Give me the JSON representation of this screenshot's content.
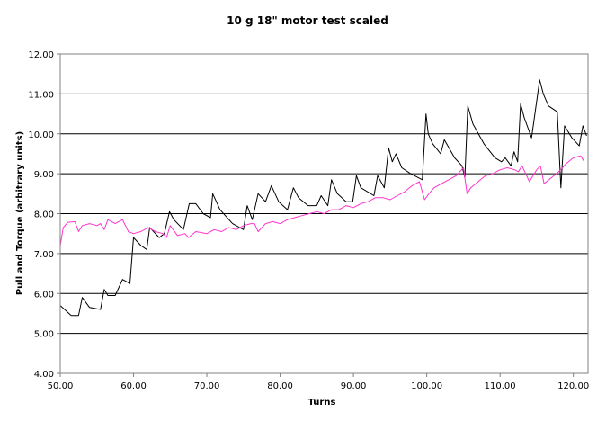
{
  "chart_data": {
    "type": "line",
    "title": "10 g 18\" motor test scaled",
    "xlabel": "Turns",
    "ylabel": "Pull and Torque (arbitrary units)",
    "xlim": [
      50,
      122
    ],
    "ylim": [
      4,
      12
    ],
    "x_ticks": [
      "50.00",
      "60.00",
      "70.00",
      "80.00",
      "90.00",
      "100.00",
      "110.00",
      "120.00"
    ],
    "y_ticks": [
      "4.00",
      "5.00",
      "6.00",
      "7.00",
      "8.00",
      "9.00",
      "10.00",
      "11.00",
      "12.00"
    ],
    "grid": "horizontal",
    "legend": "none",
    "series": [
      {
        "color": "#000000",
        "x": [
          50,
          51.5,
          52.5,
          53,
          54,
          55.5,
          56,
          56.5,
          57.5,
          58.5,
          59.5,
          60,
          61,
          61.8,
          62.2,
          63.5,
          64.2,
          64.9,
          65.5,
          66.8,
          67.6,
          68.5,
          69.5,
          70.5,
          70.8,
          71.8,
          73.5,
          75,
          75.5,
          76.2,
          77,
          78,
          78.8,
          79.8,
          81,
          81.8,
          82.5,
          83.8,
          85,
          85.6,
          86.5,
          87,
          87.8,
          89,
          89.9,
          90.4,
          91,
          92.8,
          93.3,
          94.2,
          94.8,
          95.3,
          95.8,
          96.6,
          97.8,
          99.4,
          99.9,
          100.2,
          100.8,
          101.9,
          102.4,
          103.8,
          104.8,
          105.2,
          105.6,
          106.3,
          107.8,
          109.3,
          110.2,
          110.7,
          111.5,
          111.9,
          112.4,
          112.8,
          113.3,
          114.3,
          115.4,
          115.9,
          116.6,
          117.8,
          118.3,
          118.8,
          119.8,
          120.8,
          121.3,
          121.8
        ],
        "y": [
          5.7,
          5.45,
          5.45,
          5.9,
          5.65,
          5.6,
          6.1,
          5.95,
          5.95,
          6.35,
          6.25,
          7.4,
          7.2,
          7.1,
          7.65,
          7.4,
          7.5,
          8.05,
          7.85,
          7.6,
          8.25,
          8.25,
          8.0,
          7.9,
          8.5,
          8.1,
          7.75,
          7.6,
          8.2,
          7.85,
          8.5,
          8.3,
          8.7,
          8.3,
          8.1,
          8.65,
          8.4,
          8.2,
          8.2,
          8.45,
          8.2,
          8.85,
          8.5,
          8.3,
          8.3,
          8.95,
          8.65,
          8.45,
          8.95,
          8.65,
          9.65,
          9.3,
          9.5,
          9.15,
          9.0,
          8.85,
          10.5,
          10.0,
          9.75,
          9.5,
          9.85,
          9.4,
          9.2,
          8.9,
          10.7,
          10.25,
          9.75,
          9.4,
          9.3,
          9.4,
          9.2,
          9.55,
          9.3,
          10.75,
          10.4,
          9.9,
          11.35,
          11.0,
          10.7,
          10.55,
          8.65,
          10.2,
          9.9,
          9.7,
          10.2,
          9.95
        ]
      },
      {
        "color": "#ff33cc",
        "x": [
          50,
          50.4,
          51,
          52,
          52.5,
          53,
          54,
          55,
          55.5,
          56,
          56.5,
          57.5,
          58.5,
          59.3,
          60,
          61,
          62,
          63,
          64,
          64.5,
          65,
          66,
          67,
          67.5,
          68.5,
          70,
          71,
          72,
          73,
          74,
          75,
          76,
          76.5,
          77,
          78,
          79,
          80,
          81,
          82,
          83,
          84,
          85,
          86,
          87,
          88,
          89,
          90,
          91,
          92,
          93,
          94,
          95,
          96,
          97,
          98,
          99,
          99.7,
          100.3,
          101,
          102,
          103,
          104,
          105,
          105.5,
          106,
          107,
          108,
          109,
          110,
          111,
          112,
          112.5,
          113,
          114,
          114.5,
          115,
          115.5,
          116,
          117,
          118,
          118.5,
          119,
          120,
          121,
          121.5
        ],
        "y": [
          7.2,
          7.65,
          7.78,
          7.8,
          7.55,
          7.7,
          7.75,
          7.7,
          7.75,
          7.6,
          7.85,
          7.75,
          7.85,
          7.55,
          7.5,
          7.55,
          7.65,
          7.55,
          7.5,
          7.4,
          7.7,
          7.45,
          7.5,
          7.4,
          7.55,
          7.5,
          7.6,
          7.55,
          7.65,
          7.6,
          7.7,
          7.75,
          7.75,
          7.55,
          7.75,
          7.8,
          7.75,
          7.85,
          7.9,
          7.95,
          8.0,
          8.05,
          8.0,
          8.1,
          8.1,
          8.2,
          8.15,
          8.25,
          8.3,
          8.4,
          8.4,
          8.35,
          8.45,
          8.55,
          8.7,
          8.8,
          8.35,
          8.5,
          8.65,
          8.75,
          8.85,
          8.95,
          9.15,
          8.5,
          8.65,
          8.8,
          8.95,
          9.0,
          9.1,
          9.15,
          9.1,
          9.05,
          9.2,
          8.8,
          8.95,
          9.1,
          9.2,
          8.75,
          8.9,
          9.05,
          9.15,
          9.25,
          9.4,
          9.45,
          9.3
        ]
      }
    ]
  }
}
